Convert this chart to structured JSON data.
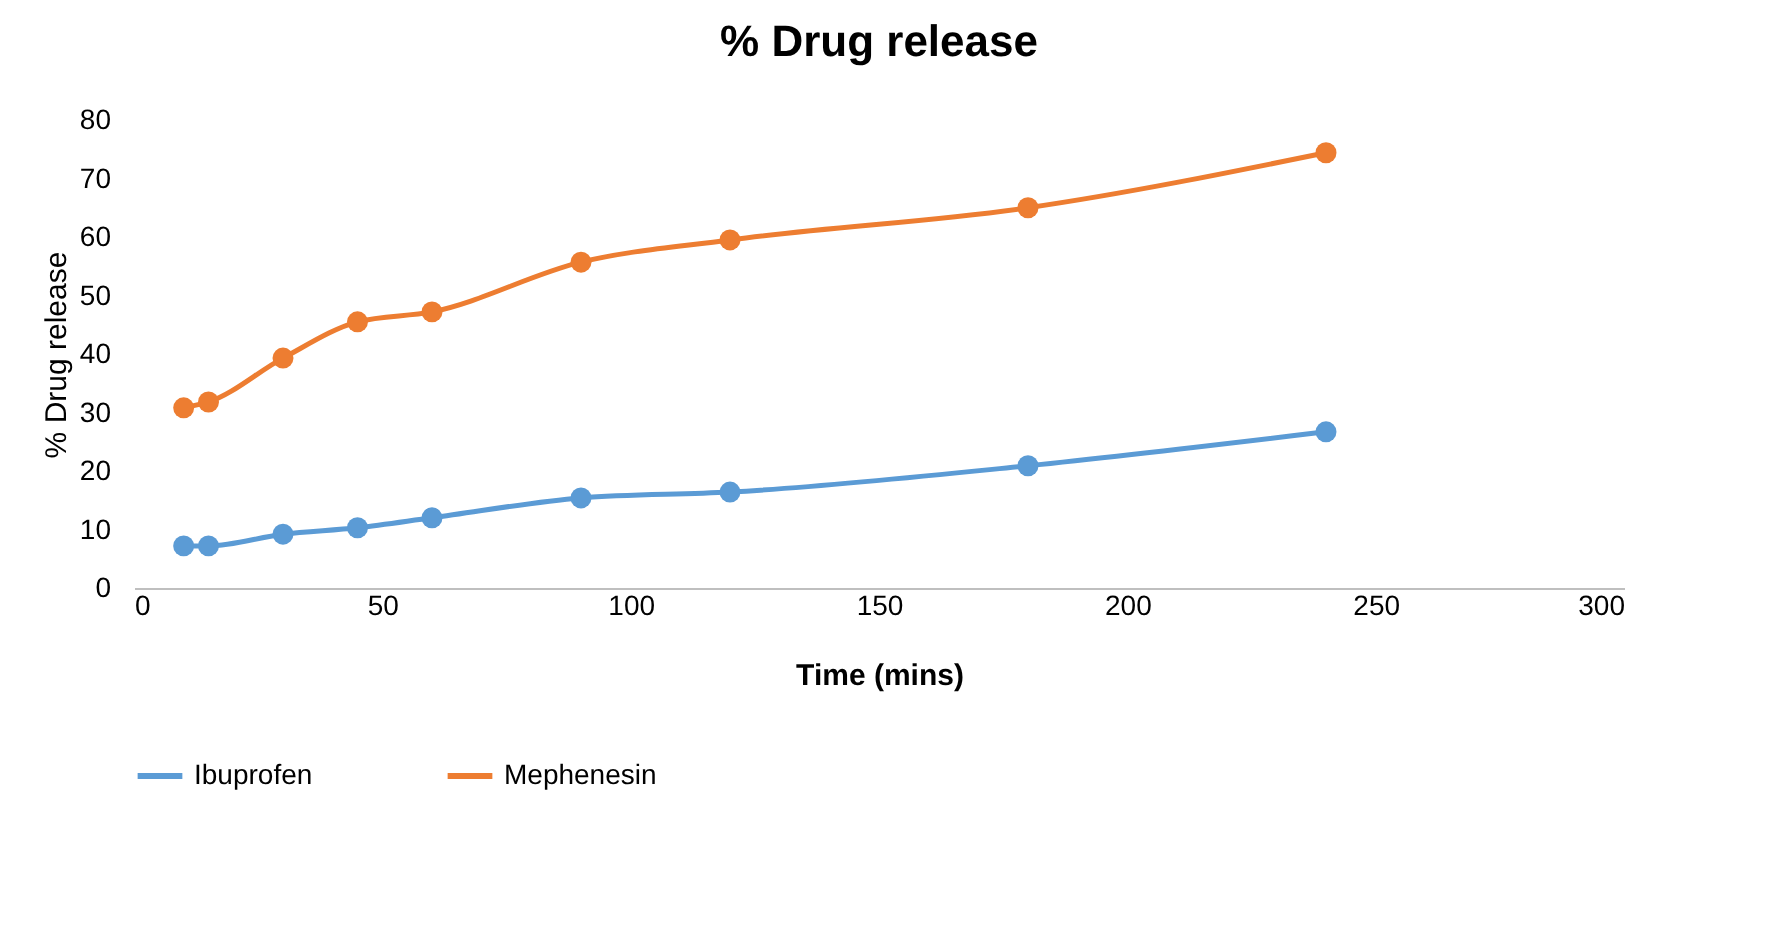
{
  "chart_data": {
    "type": "line",
    "title": "% Drug release",
    "xlabel": "Time (mins)",
    "ylabel": "% Drug release",
    "x": [
      10,
      15,
      30,
      45,
      60,
      90,
      120,
      180,
      240
    ],
    "series": [
      {
        "name": "Ibuprofen",
        "color": "#5b9bd5",
        "values": [
          7.2,
          7.2,
          9.2,
          10.3,
          12,
          15.4,
          16.4,
          20.9,
          26.7
        ]
      },
      {
        "name": "Mephenesin",
        "color": "#ed7d31",
        "values": [
          30.8,
          31.8,
          39.3,
          45.5,
          47.2,
          55.7,
          59.5,
          65,
          74.4
        ]
      }
    ],
    "xlim": [
      0,
      300
    ],
    "xticks": [
      0,
      50,
      100,
      150,
      200,
      250,
      300
    ],
    "ylim": [
      0,
      80
    ],
    "yticks": [
      0,
      10,
      20,
      30,
      40,
      50,
      60,
      70,
      80
    ],
    "grid": false,
    "legend": "bottom",
    "marker": "circle",
    "line_style": "solid"
  }
}
